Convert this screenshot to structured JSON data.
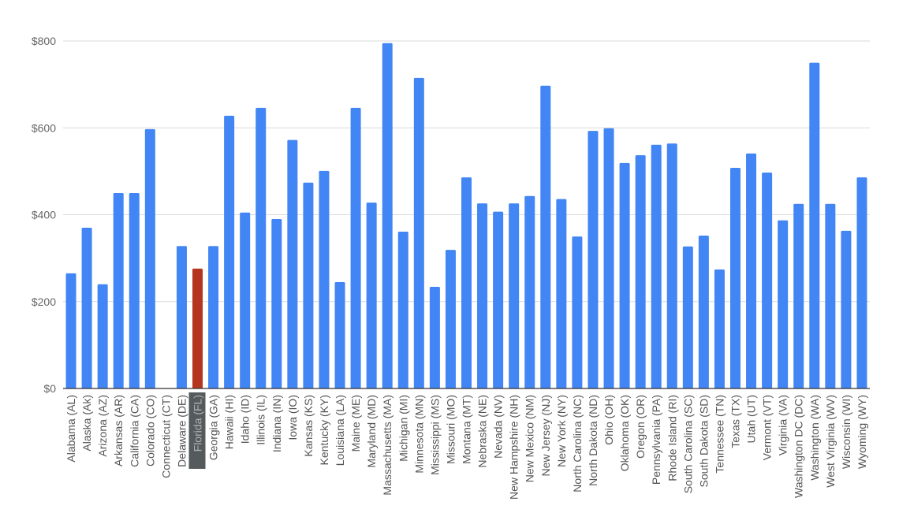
{
  "chart_data": {
    "type": "bar",
    "title": "",
    "xlabel": "",
    "ylabel": "",
    "ylim": [
      0,
      800
    ],
    "yticks": [
      "$0",
      "$200",
      "$400",
      "$600",
      "$800"
    ],
    "ytick_values": [
      0,
      200,
      400,
      600,
      800
    ],
    "grid": true,
    "legend": "none",
    "colors": {
      "bar": "#4285f4",
      "highlight": "#b5361f",
      "highlight_label_bg": "#555a5c",
      "highlight_label_text": "#aeb2b4",
      "grid": "#d9d9d9",
      "axis": "#333333",
      "tick_text": "#666666"
    },
    "highlighted_category": "Florida (FL)",
    "categories": [
      "Alabama (AL)",
      "Alaska (Ak)",
      "Arizona (AZ)",
      "Arkansas (AR)",
      "California (CA)",
      "Colorado (CO)",
      "Connecticut (CT)",
      "Delaware (DE)",
      "Florida (FL)",
      "Georgia (GA)",
      "Hawaii (HI)",
      "Idaho (ID)",
      "Illinois (IL)",
      "Indiana (IN)",
      "Iowa (IO)",
      "Kansas (KS)",
      "Kentucky (KY)",
      "Louisiana (LA)",
      "Maine (ME)",
      "Maryland (MD)",
      "Massachusetts (MA)",
      "Michigan (MI)",
      "Minnesota (MN)",
      "Mississippi (MS)",
      "Missouri (MO)",
      "Montana (MT)",
      "Nebraska (NE)",
      "Nevada (NV)",
      "New Hampshire (NH)",
      "New Mexico (NM)",
      "New Jersey (NJ)",
      "New York (NY)",
      "North Carolina (NC)",
      "North Dakota (ND)",
      "Ohio (OH)",
      "Oklahoma (OK)",
      "Oregon (OR)",
      "Pennsylvania (PA)",
      "Rhode Island (RI)",
      "South Carolina (SC)",
      "South Dakota (SD)",
      "Tennessee (TN)",
      "Texas (TX)",
      "Utah (UT)",
      "Vermont (VT)",
      "Virginia (VA)",
      "Washington DC (DC)",
      "Washington (WA)",
      "West Virginia (WV)",
      "Wisconsin (WI)",
      "Wyoming (WY)"
    ],
    "values": [
      265,
      370,
      240,
      450,
      450,
      597,
      0,
      328,
      276,
      328,
      628,
      405,
      646,
      390,
      572,
      474,
      501,
      245,
      646,
      428,
      795,
      361,
      715,
      234,
      319,
      486,
      426,
      407,
      426,
      443,
      697,
      436,
      350,
      593,
      599,
      519,
      537,
      561,
      564,
      327,
      352,
      274,
      508,
      541,
      497,
      387,
      425,
      750,
      425,
      363,
      486
    ]
  }
}
